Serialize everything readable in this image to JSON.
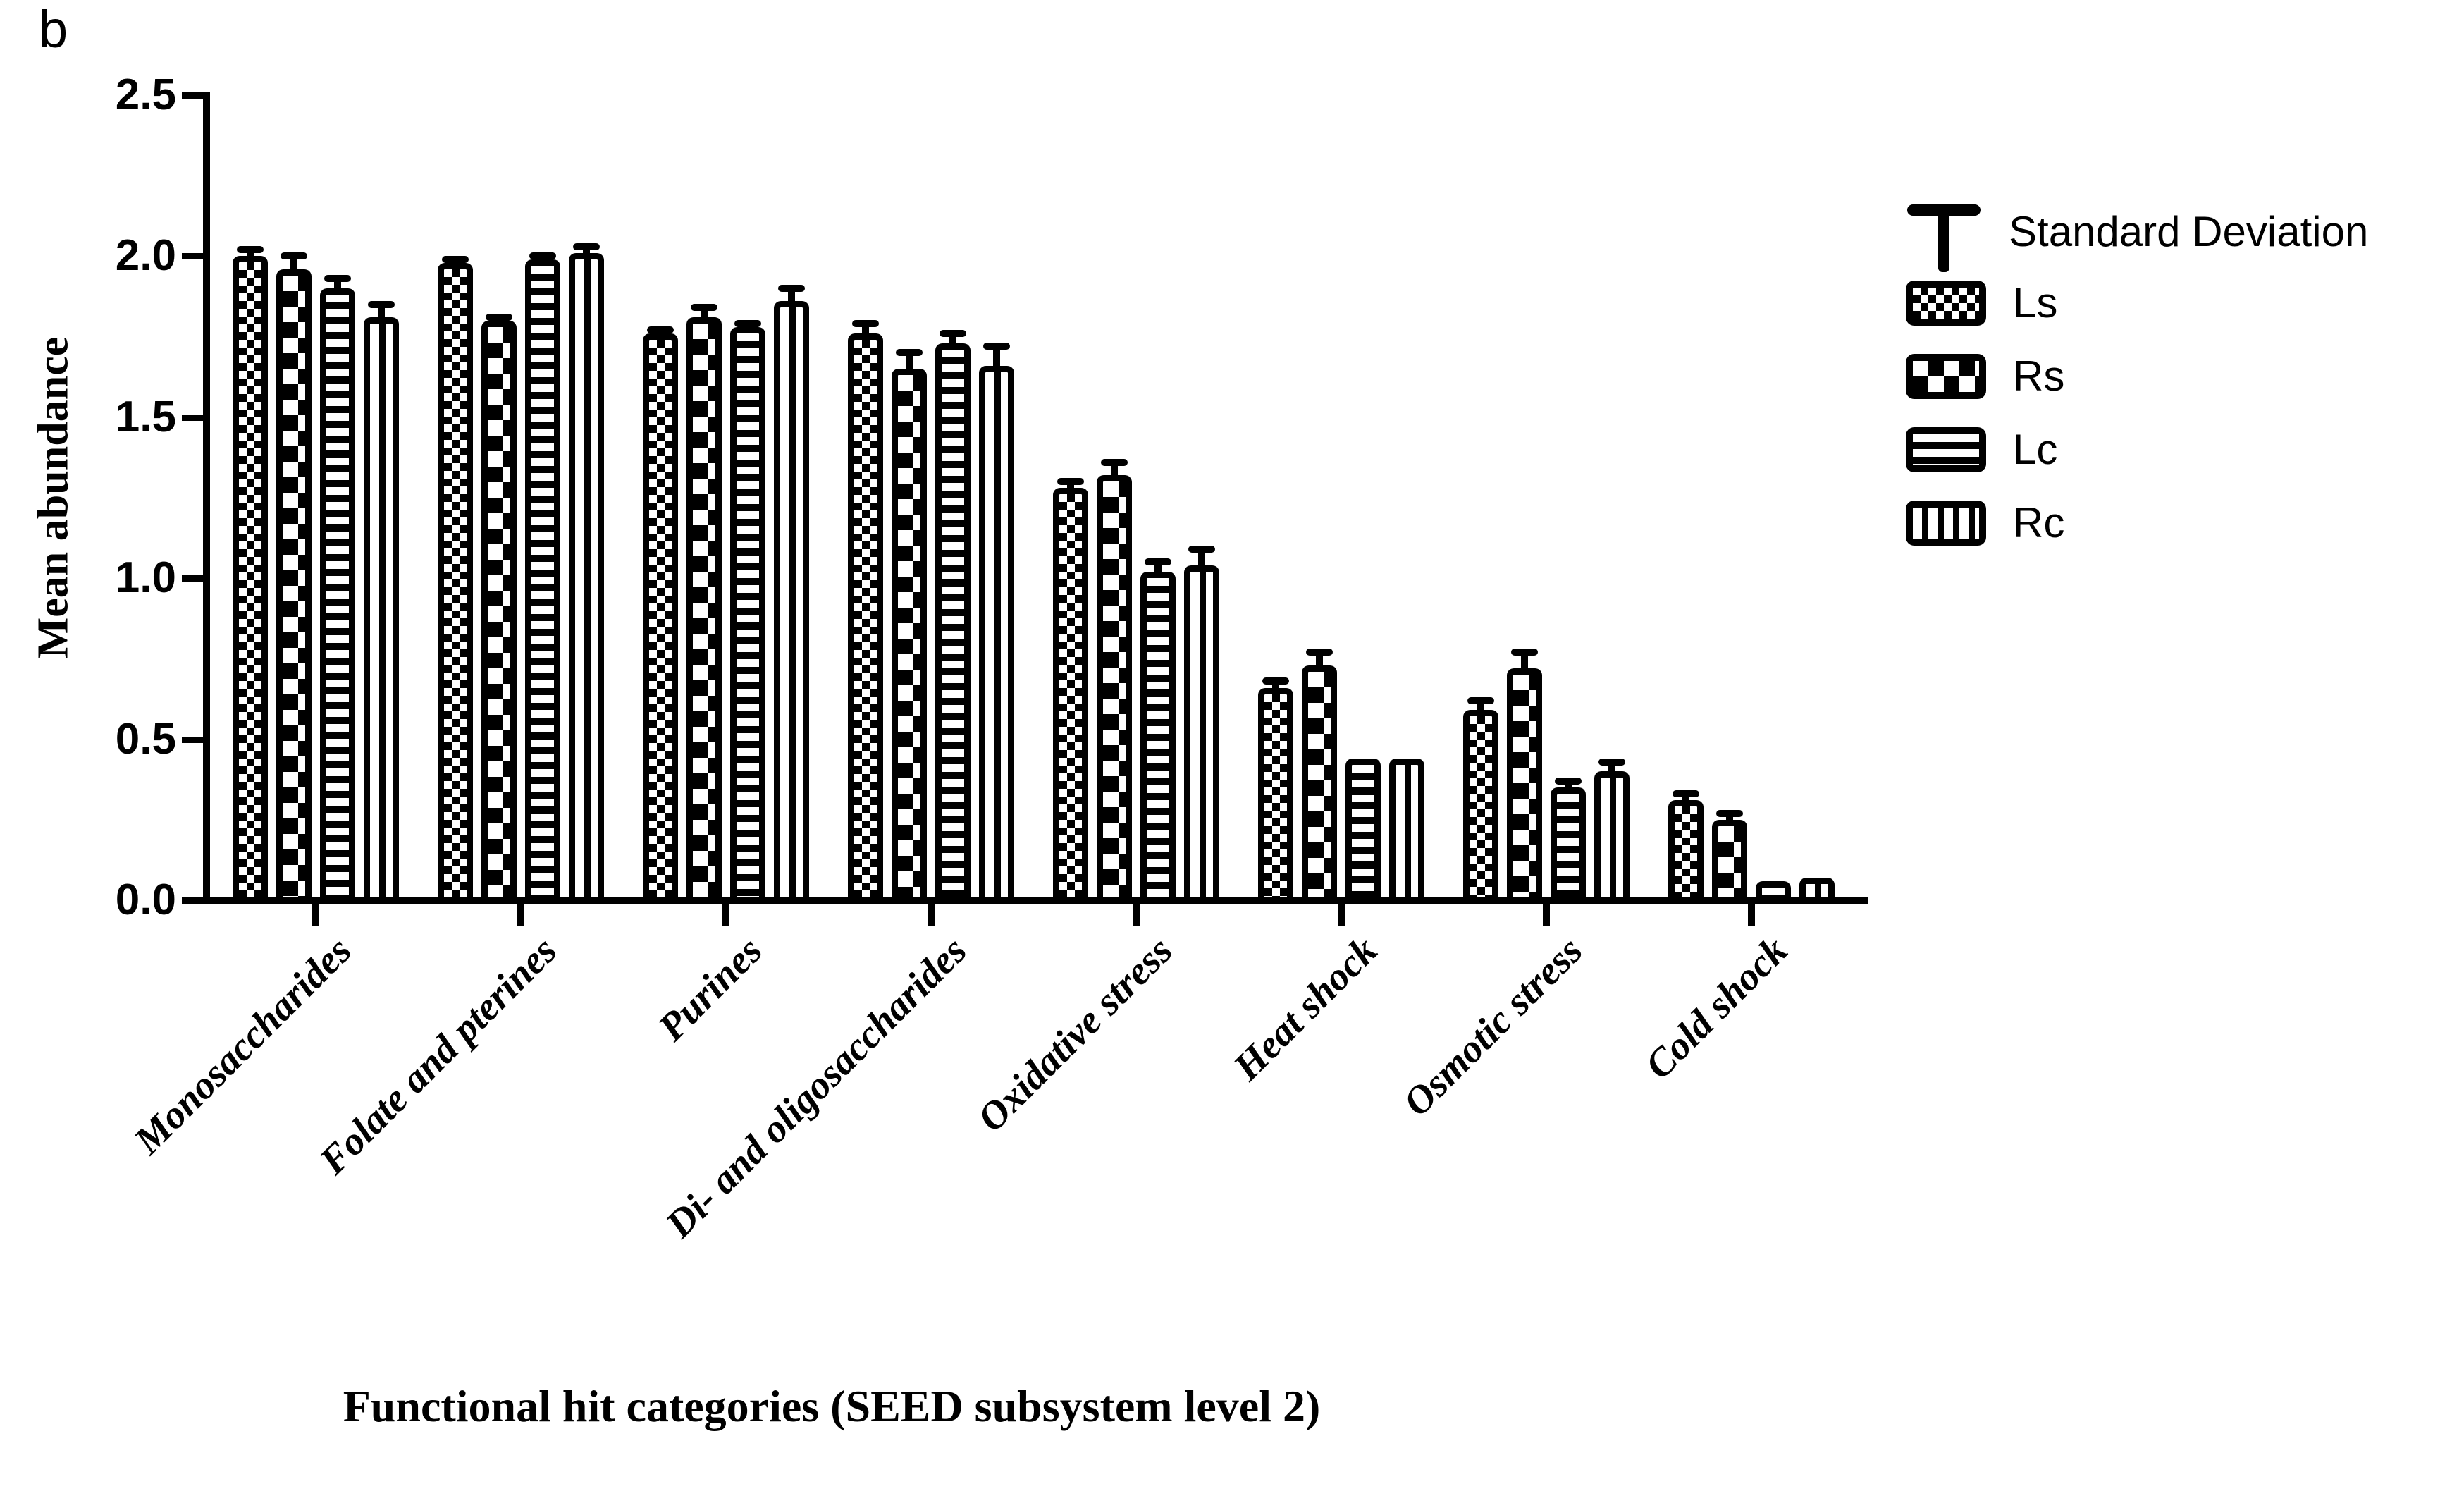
{
  "figure_label": "b",
  "legend": {
    "position": "right",
    "error_symbol_label": "Standard Deviation",
    "items": [
      {
        "label": "Ls",
        "pattern": "fine-checkerboard"
      },
      {
        "label": "Rs",
        "pattern": "coarse-checkerboard"
      },
      {
        "label": "Lc",
        "pattern": "horizontal-stripes"
      },
      {
        "label": "Rc",
        "pattern": "vertical-stripes"
      }
    ]
  },
  "chart_data": {
    "type": "bar",
    "title": "",
    "xlabel": "Functional hit categories (SEED subsystem level 2)",
    "ylabel": "Mean abundance",
    "ylim": [
      0,
      2.5
    ],
    "ytick_labels": [
      "0.0",
      "0.5",
      "1.0",
      "1.5",
      "2.0",
      "2.5"
    ],
    "grid": false,
    "error_bars": "Standard Deviation",
    "colors": {
      "bar_fill": "#ffffff",
      "bar_stroke": "#000000",
      "background": "#ffffff"
    },
    "categories": [
      "Monosaccharides",
      "Folate and pterines",
      "Purines",
      "Di- and oligosaccharides",
      "Oxidative stress",
      "Heat shock",
      "Osmotic stress",
      "Cold shock"
    ],
    "series": [
      {
        "name": "Ls",
        "pattern": "fine-checkerboard",
        "values": [
          2.0,
          1.98,
          1.76,
          1.76,
          1.28,
          0.66,
          0.59,
          0.31
        ],
        "sd": [
          0.02,
          0.01,
          0.01,
          0.03,
          0.02,
          0.02,
          0.03,
          0.02
        ]
      },
      {
        "name": "Rs",
        "pattern": "coarse-checkerboard",
        "values": [
          1.96,
          1.8,
          1.81,
          1.65,
          1.32,
          0.73,
          0.72,
          0.25
        ],
        "sd": [
          0.04,
          0.01,
          0.03,
          0.05,
          0.04,
          0.04,
          0.05,
          0.02
        ]
      },
      {
        "name": "Lc",
        "pattern": "horizontal-stripes",
        "values": [
          1.9,
          1.99,
          1.78,
          1.73,
          1.02,
          0.44,
          0.35,
          0.06
        ],
        "sd": [
          0.03,
          0.01,
          0.01,
          0.03,
          0.03,
          0.0,
          0.02,
          0.0
        ]
      },
      {
        "name": "Rc",
        "pattern": "vertical-stripes",
        "values": [
          1.81,
          2.01,
          1.86,
          1.66,
          1.04,
          0.44,
          0.4,
          0.07
        ],
        "sd": [
          0.04,
          0.02,
          0.04,
          0.06,
          0.05,
          0.0,
          0.03,
          0.0
        ]
      }
    ]
  }
}
